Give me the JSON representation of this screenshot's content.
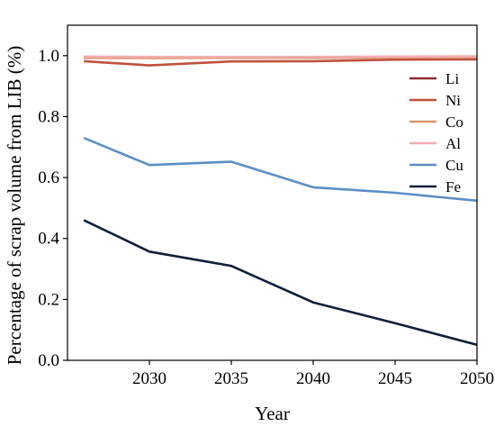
{
  "chart_data": {
    "type": "line",
    "title": "",
    "xlabel": "Year",
    "ylabel": "Percentage of scrap volume from LIB (%)",
    "x": [
      2026,
      2030,
      2035,
      2040,
      2045,
      2050
    ],
    "xlim": [
      2025,
      2050
    ],
    "ylim": [
      0.0,
      1.1
    ],
    "xticks": [
      2030,
      2035,
      2040,
      2045,
      2050
    ],
    "yticks": [
      0.0,
      0.2,
      0.4,
      0.6,
      0.8,
      1.0
    ],
    "xtick_labels": [
      "2030",
      "2035",
      "2040",
      "2045",
      "2050"
    ],
    "ytick_labels": [
      "0.0",
      "0.2",
      "0.4",
      "0.6",
      "0.8",
      "1.0"
    ],
    "grid": false,
    "legend_position": "right",
    "series": [
      {
        "name": "Li",
        "color": "#8b2e2e",
        "values": [
          0.996,
          0.995,
          0.995,
          0.995,
          0.996,
          0.997
        ]
      },
      {
        "name": "Ni",
        "color": "#c0513d",
        "values": [
          0.982,
          0.968,
          0.981,
          0.982,
          0.987,
          0.988
        ]
      },
      {
        "name": "Co",
        "color": "#df9272",
        "values": [
          0.993,
          0.992,
          0.993,
          0.993,
          0.994,
          0.995
        ]
      },
      {
        "name": "Al",
        "color": "#f2aeae",
        "values": [
          0.997,
          0.996,
          0.996,
          0.996,
          0.997,
          0.998
        ]
      },
      {
        "name": "Cu",
        "color": "#5b8ec5",
        "values": [
          0.73,
          0.641,
          0.652,
          0.568,
          0.55,
          0.524
        ]
      },
      {
        "name": "Fe",
        "color": "#0d1f3a",
        "values": [
          0.46,
          0.357,
          0.31,
          0.19,
          0.122,
          0.051
        ]
      }
    ]
  }
}
